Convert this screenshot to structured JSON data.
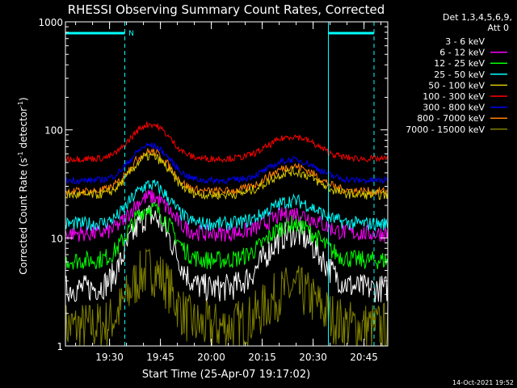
{
  "chart_data": {
    "type": "line",
    "title": "RHESSI Observing Summary Count Rates, Corrected",
    "xlabel": "Start Time (25-Apr-07 19:17:02)",
    "ylabel_main": "Corrected Count Rate (s",
    "ylabel_sup1": "-1",
    "ylabel_mid": " detector",
    "ylabel_sup2": "-1",
    "ylabel_end": ")",
    "yscale": "log",
    "ylim": [
      1,
      1000
    ],
    "xlim_minutes": [
      0,
      95
    ],
    "x_ticks": [
      {
        "label": "19:30",
        "min": 13
      },
      {
        "label": "19:45",
        "min": 28
      },
      {
        "label": "20:00",
        "min": 43
      },
      {
        "label": "20:15",
        "min": 58
      },
      {
        "label": "20:30",
        "min": 73
      },
      {
        "label": "20:45",
        "min": 88
      }
    ],
    "y_ticks": [
      {
        "label": "1",
        "v": 1
      },
      {
        "label": "10",
        "v": 10
      },
      {
        "label": "100",
        "v": 100
      },
      {
        "label": "1000",
        "v": 1000
      }
    ],
    "legend": {
      "header1": "Det 1,3,4,5,6,9,",
      "header2": "Att 0",
      "placement": "top-right outside"
    },
    "series": [
      {
        "name": "3 - 6 keV",
        "color": "#ffffff",
        "base": 3.4,
        "p1": 16,
        "p2": 11,
        "noise": 0.3,
        "legend_color": "#000000"
      },
      {
        "name": "6 - 12 keV",
        "color": "#ff00ff",
        "base": 11,
        "p1": 24,
        "p2": 17,
        "noise": 0.18
      },
      {
        "name": "12 - 25 keV",
        "color": "#00ff00",
        "base": 6.2,
        "p1": 19,
        "p2": 13.5,
        "noise": 0.2
      },
      {
        "name": "25 - 50 keV",
        "color": "#00ffff",
        "base": 13.5,
        "p1": 31,
        "p2": 22,
        "noise": 0.15
      },
      {
        "name": "50 - 100 keV",
        "color": "#d8c800",
        "base": 25,
        "p1": 57,
        "p2": 41,
        "noise": 0.1
      },
      {
        "name": "100 - 300 keV",
        "color": "#ff0000",
        "base": 54,
        "p1": 113,
        "p2": 87,
        "noise": 0.07
      },
      {
        "name": "300 - 800 keV",
        "color": "#0000ff",
        "base": 34,
        "p1": 72,
        "p2": 53,
        "noise": 0.07
      },
      {
        "name": "800 - 7000 keV",
        "color": "#ff8000",
        "base": 27,
        "p1": 63,
        "p2": 46,
        "noise": 0.09
      },
      {
        "name": "7000 - 15000 keV",
        "color": "#808000",
        "base": 1.5,
        "p1": 5,
        "p2": 3.3,
        "noise": 0.55
      }
    ],
    "annotations": {
      "flag_label": "N",
      "night_start_min": 17.5,
      "night_end_min": 77.5
    }
  },
  "footer": {
    "timestamp": "14-Oct-2021 19:52"
  }
}
